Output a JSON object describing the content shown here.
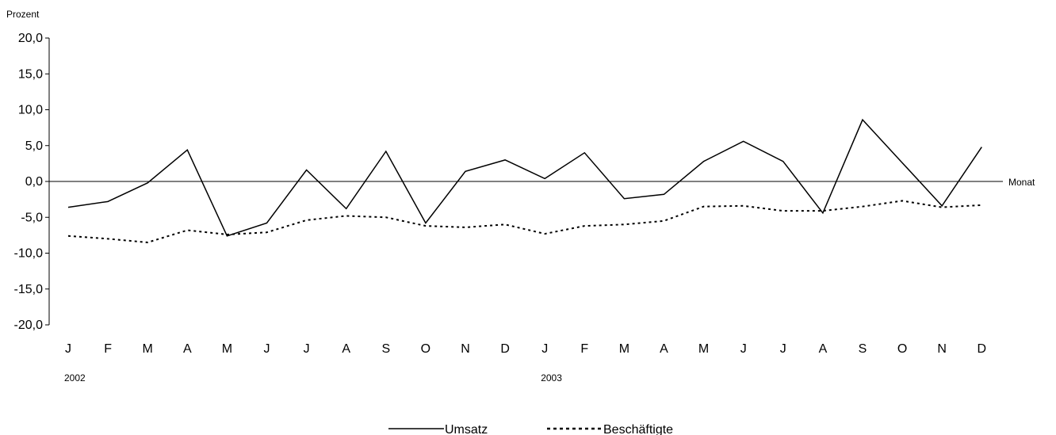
{
  "chart_data": {
    "type": "line",
    "ylabel": "Prozent",
    "xlabel": "Monat",
    "ylim": [
      -20,
      20
    ],
    "yticks": [
      "20,0",
      "15,0",
      "10,0",
      "5,0",
      "0,0",
      "-5,0",
      "-10,0",
      "-15,0",
      "-20,0"
    ],
    "yticks_values": [
      20,
      15,
      10,
      5,
      0,
      -5,
      -10,
      -15,
      -20
    ],
    "categories": [
      "J",
      "F",
      "M",
      "A",
      "M",
      "J",
      "J",
      "A",
      "S",
      "O",
      "N",
      "D",
      "J",
      "F",
      "M",
      "A",
      "M",
      "J",
      "J",
      "A",
      "S",
      "O",
      "N",
      "D"
    ],
    "year_labels": [
      "2002",
      "2003"
    ],
    "series": [
      {
        "name": "Umsatz",
        "style": "solid",
        "values": [
          -3.6,
          -2.8,
          -0.2,
          4.4,
          -7.6,
          -5.8,
          1.6,
          -3.8,
          4.2,
          -5.8,
          1.4,
          3.0,
          0.4,
          4.0,
          -2.4,
          -1.8,
          2.8,
          5.6,
          2.8,
          -4.4,
          8.6,
          2.6,
          -3.4,
          4.8
        ]
      },
      {
        "name": "Beschäftigte",
        "style": "dotted",
        "values": [
          -7.6,
          -8.0,
          -8.5,
          -6.8,
          -7.4,
          -7.1,
          -5.4,
          -4.8,
          -5.0,
          -6.2,
          -6.4,
          -6.0,
          -7.3,
          -6.2,
          -6.0,
          -5.5,
          -3.5,
          -3.4,
          -4.1,
          -4.1,
          -3.5,
          -2.7,
          -3.6,
          -3.3
        ]
      }
    ],
    "grid": false,
    "legend_position": "bottom-center"
  },
  "colors": {
    "line": "#000000",
    "background": "#ffffff"
  }
}
